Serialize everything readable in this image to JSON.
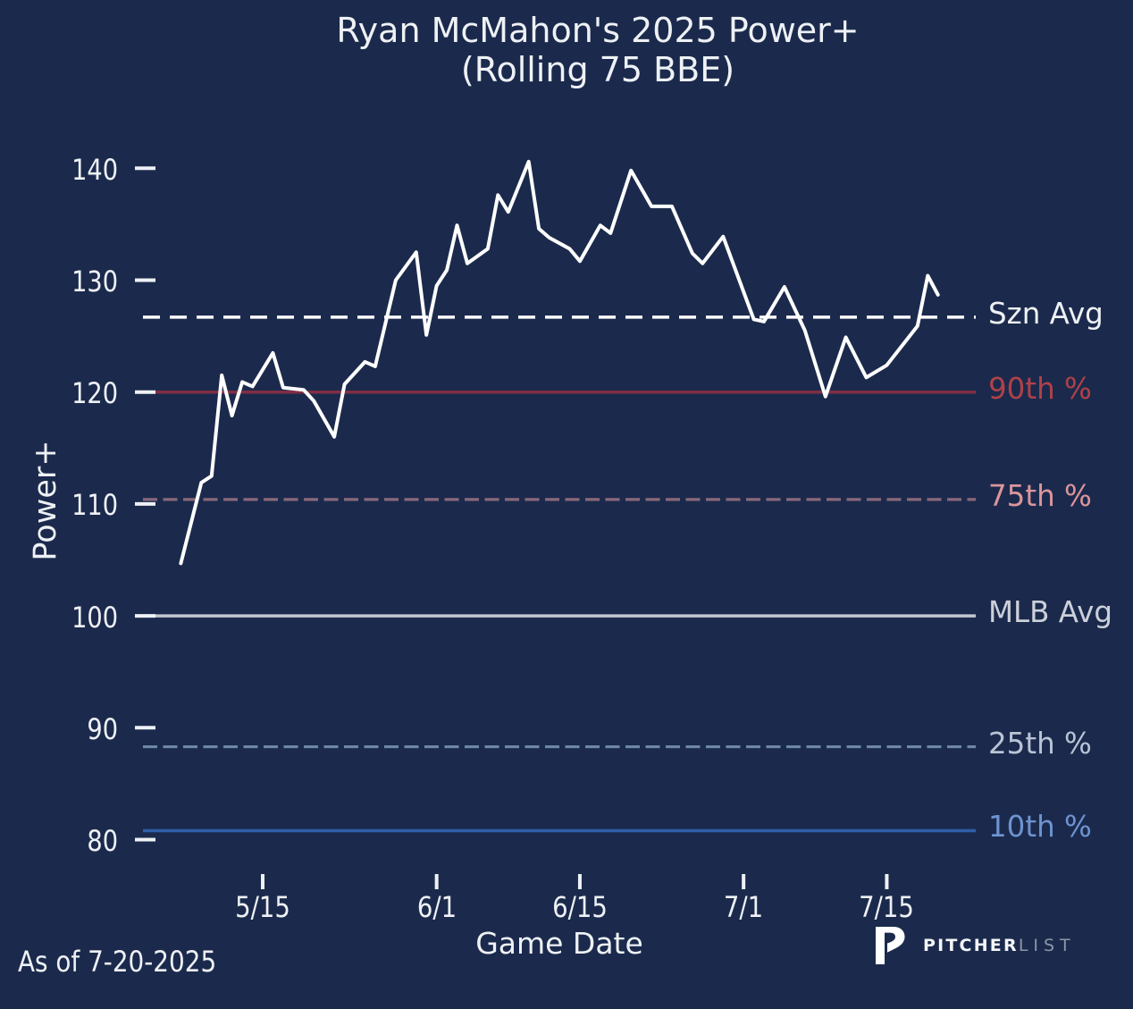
{
  "title": {
    "line1": "Ryan McMahon's 2025 Power+",
    "line2": "(Rolling 75 BBE)"
  },
  "axes": {
    "y_label": "Power+",
    "x_label": "Game Date",
    "y_ticks": [
      140,
      130,
      120,
      110,
      100,
      90,
      80
    ],
    "x_ticks": [
      "5/15",
      "6/1",
      "6/15",
      "7/1",
      "7/15"
    ]
  },
  "chart_data": {
    "type": "line",
    "title": "Ryan McMahon's 2025 Power+ (Rolling 75 BBE)",
    "xlabel": "Game Date",
    "ylabel": "Power+",
    "ylim": [
      76,
      143
    ],
    "series_name": "Rolling 75 BBE Power+",
    "x": [
      "5/7",
      "5/9",
      "5/10",
      "5/11",
      "5/12",
      "5/13",
      "5/14",
      "5/16",
      "5/17",
      "5/19",
      "5/20",
      "5/22",
      "5/23",
      "5/25",
      "5/26",
      "5/28",
      "5/30",
      "5/31",
      "6/1",
      "6/2",
      "6/3",
      "6/4",
      "6/6",
      "6/7",
      "6/8",
      "6/10",
      "6/11",
      "6/12",
      "6/14",
      "6/15",
      "6/17",
      "6/18",
      "6/20",
      "6/22",
      "6/24",
      "6/26",
      "6/27",
      "6/29",
      "7/2",
      "7/3",
      "7/5",
      "7/7",
      "7/9",
      "7/11",
      "7/13",
      "7/15",
      "7/18",
      "7/19",
      "7/20"
    ],
    "values": [
      104.7,
      111.9,
      112.5,
      121.5,
      117.9,
      120.9,
      120.5,
      123.5,
      120.4,
      120.2,
      119.2,
      116.0,
      120.7,
      122.7,
      122.3,
      130.0,
      132.5,
      125.1,
      129.5,
      130.9,
      134.9,
      131.5,
      132.8,
      137.6,
      136.1,
      140.6,
      134.6,
      133.8,
      132.8,
      131.7,
      134.9,
      134.2,
      139.8,
      136.6,
      136.6,
      132.4,
      131.5,
      133.9,
      126.5,
      126.3,
      129.4,
      125.5,
      119.6,
      124.9,
      121.3,
      122.4,
      125.9,
      130.4,
      128.7
    ],
    "line_color": "#ffffff",
    "reference_lines": [
      {
        "label": "Szn Avg",
        "value": 126.7,
        "style": "dashed",
        "line_color": "#ffffff",
        "label_color": "#eef1f5"
      },
      {
        "label": "90th %",
        "value": 120.0,
        "style": "solid",
        "line_color": "#802e45",
        "label_color": "#b04149"
      },
      {
        "label": "75th %",
        "value": 110.4,
        "style": "dashed",
        "line_color": "#89687d",
        "label_color": "#dc959c"
      },
      {
        "label": "MLB Avg",
        "value": 100.0,
        "style": "solid",
        "line_color": "#c3c7d0",
        "label_color": "#ccd0d9"
      },
      {
        "label": "25th %",
        "value": 88.3,
        "style": "dashed",
        "line_color": "#6f87a6",
        "label_color": "#b9c4d6"
      },
      {
        "label": "10th %",
        "value": 80.8,
        "style": "solid",
        "line_color": "#2e5fa7",
        "label_color": "#6e93d0"
      }
    ]
  },
  "footer": {
    "as_of": "As of 7-20-2025",
    "brand_bold": "PITCHER",
    "brand_light": "LIST"
  },
  "colors": {
    "background": "#1b2a4c",
    "text": "#eef1f5"
  }
}
